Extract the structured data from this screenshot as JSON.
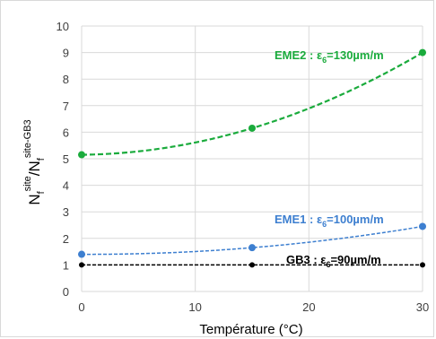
{
  "chart_data": {
    "type": "scatter",
    "xlabel": "Température (°C)",
    "ylabel": {
      "text": "N",
      "sub1": "f",
      "sup1": "site",
      "slash": "/N",
      "sub2": "f",
      "sup2": "site-GB3"
    },
    "xlim": [
      0,
      30
    ],
    "ylim": [
      0,
      10
    ],
    "xticks": [
      "0",
      "10",
      "20",
      "30"
    ],
    "yticks": [
      "0",
      "1",
      "2",
      "3",
      "4",
      "5",
      "6",
      "7",
      "8",
      "9",
      "10"
    ],
    "grid": {
      "x": true,
      "y": true
    },
    "series": [
      {
        "key": "eme2",
        "label": {
          "prefix": "EME2 : ε",
          "sub": "6",
          "suffix": "=130µm/m"
        },
        "color": "#1aab3c",
        "trendline": "polynomial",
        "x": [
          0,
          15,
          30
        ],
        "y": [
          5.15,
          6.15,
          9.0
        ]
      },
      {
        "key": "eme1",
        "label": {
          "prefix": "EME1 : ε",
          "sub": "6",
          "suffix": "=100µm/m"
        },
        "color": "#3d7fd0",
        "trendline": "polynomial",
        "x": [
          0,
          15,
          30
        ],
        "y": [
          1.4,
          1.65,
          2.45
        ]
      },
      {
        "key": "gb3",
        "label": {
          "prefix": "GB3 : ε",
          "sub": "6",
          "suffix": "=90µm/m"
        },
        "color": "#000000",
        "trendline": "linear",
        "x": [
          0,
          15,
          30
        ],
        "y": [
          1.0,
          1.0,
          1.0
        ]
      }
    ]
  }
}
